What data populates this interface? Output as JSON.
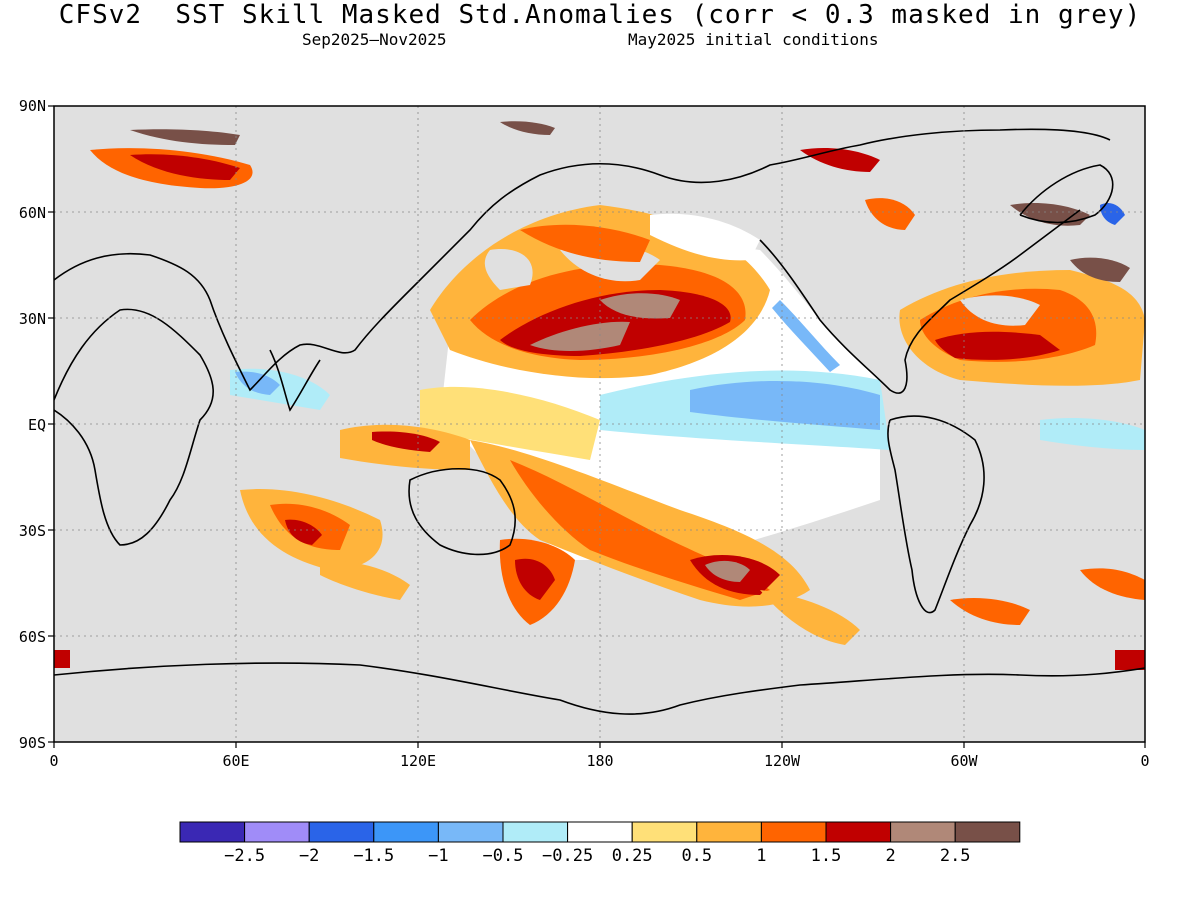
{
  "header": {
    "title": "CFSv2  SST Skill Masked Std.Anomalies (corr < 0.3 masked in grey)",
    "period": "Sep2025–Nov2025",
    "init": "May2025 initial conditions"
  },
  "axes": {
    "lat_ticks": [
      "90N",
      "60N",
      "30N",
      "EQ",
      "30S",
      "60S",
      "90S"
    ],
    "lon_ticks": [
      "0",
      "60E",
      "120E",
      "180",
      "120W",
      "60W",
      "0"
    ]
  },
  "colorbar": {
    "colors": [
      "#3a28b4",
      "#a08cf8",
      "#2a64e8",
      "#3c96f8",
      "#78b8f8",
      "#b0ecf8",
      "#ffffff",
      "#ffe078",
      "#ffb43c",
      "#ff6400",
      "#c00000",
      "#b08878",
      "#785048"
    ],
    "labels": [
      "−2.5",
      "−2",
      "−1.5",
      "−1",
      "−0.5",
      "−0.25",
      "0.25",
      "0.5",
      "1",
      "1.5",
      "2",
      "2.5"
    ]
  },
  "map": {
    "mask_color": "#e0e0e0",
    "land_color": "#e0e0e0"
  }
}
